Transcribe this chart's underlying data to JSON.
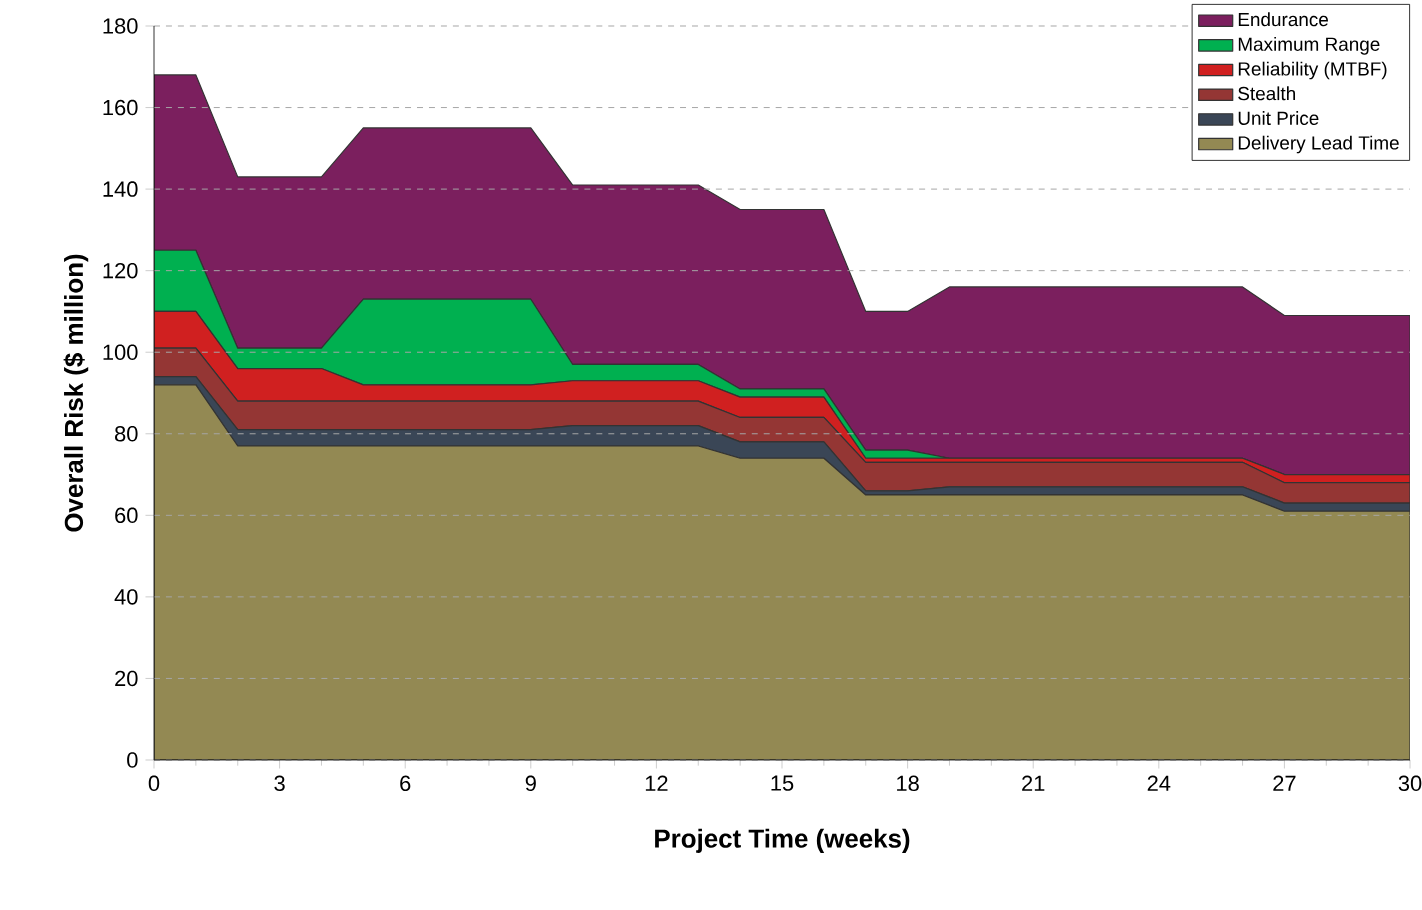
{
  "chart_data": {
    "type": "area",
    "stacked": true,
    "xlabel": "Project Time (weeks)",
    "ylabel": "Overall Risk ($ million)",
    "x": [
      0,
      1,
      2,
      3,
      4,
      5,
      6,
      7,
      8,
      9,
      10,
      11,
      12,
      13,
      14,
      15,
      16,
      17,
      18,
      19,
      20,
      21,
      22,
      23,
      24,
      25,
      26,
      27,
      28,
      29,
      30
    ],
    "series": [
      {
        "name": "Delivery Lead Time",
        "color": "#938953",
        "values": [
          92,
          92,
          77,
          77,
          77,
          77,
          77,
          77,
          77,
          77,
          77,
          77,
          77,
          77,
          74,
          74,
          74,
          65,
          65,
          65,
          65,
          65,
          65,
          65,
          65,
          65,
          65,
          61,
          61,
          61,
          61
        ]
      },
      {
        "name": "Unit Price",
        "color": "#3a4656",
        "values": [
          2,
          2,
          4,
          4,
          4,
          4,
          4,
          4,
          4,
          4,
          5,
          5,
          5,
          5,
          4,
          4,
          4,
          1,
          1,
          2,
          2,
          2,
          2,
          2,
          2,
          2,
          2,
          2,
          2,
          2,
          2
        ]
      },
      {
        "name": "Stealth",
        "color": "#943634",
        "values": [
          7,
          7,
          7,
          7,
          7,
          7,
          7,
          7,
          7,
          7,
          6,
          6,
          6,
          6,
          6,
          6,
          6,
          7,
          7,
          6,
          6,
          6,
          6,
          6,
          6,
          6,
          6,
          5,
          5,
          5,
          5
        ]
      },
      {
        "name": "Reliability (MTBF)",
        "color": "#d02020",
        "values": [
          9,
          9,
          8,
          8,
          8,
          4,
          4,
          4,
          4,
          4,
          5,
          5,
          5,
          5,
          5,
          5,
          5,
          1,
          1,
          1,
          1,
          1,
          1,
          1,
          1,
          1,
          1,
          2,
          2,
          2,
          2
        ]
      },
      {
        "name": "Maximum Range",
        "color": "#00b050",
        "values": [
          15,
          15,
          5,
          5,
          5,
          21,
          21,
          21,
          21,
          21,
          4,
          4,
          4,
          4,
          2,
          2,
          2,
          2,
          2,
          0,
          0,
          0,
          0,
          0,
          0,
          0,
          0,
          0,
          0,
          0,
          0
        ]
      },
      {
        "name": "Endurance",
        "color": "#7b1f5e",
        "values": [
          43,
          43,
          42,
          42,
          42,
          42,
          42,
          42,
          42,
          42,
          44,
          44,
          44,
          44,
          44,
          44,
          44,
          34,
          34,
          42,
          42,
          42,
          42,
          42,
          42,
          42,
          42,
          39,
          39,
          39,
          39
        ]
      }
    ],
    "xlim": [
      0,
      30
    ],
    "ylim": [
      0,
      180
    ],
    "xticks": [
      0,
      3,
      6,
      9,
      12,
      15,
      18,
      21,
      24,
      27,
      30
    ],
    "yticks": [
      0,
      20,
      40,
      60,
      80,
      100,
      120,
      140,
      160,
      180
    ],
    "grid": "y",
    "legend": "top right"
  }
}
